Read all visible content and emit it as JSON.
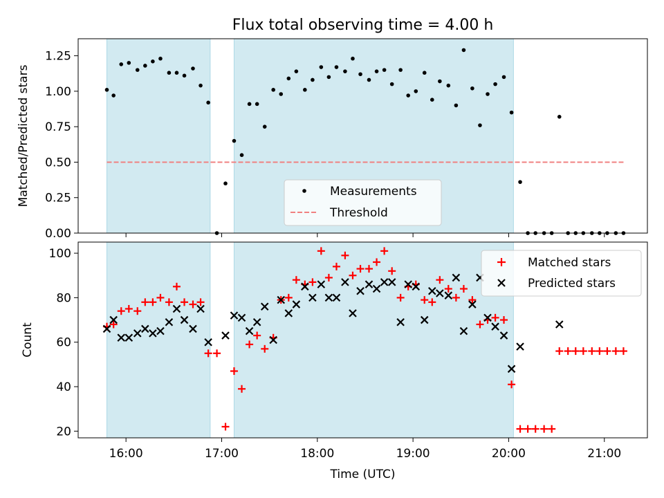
{
  "title": "Flux total observing time = 4.00 h",
  "chart_data": [
    {
      "type": "scatter",
      "ylabel": "Matched/Predicted stars",
      "xlim": [
        15.5,
        21.45
      ],
      "ylim": [
        0,
        1.37
      ],
      "yticks": [
        "0.00",
        "0.25",
        "0.50",
        "0.75",
        "1.00",
        "1.25"
      ],
      "ytick_values": [
        0,
        0.25,
        0.5,
        0.75,
        1.0,
        1.25
      ],
      "grid": false,
      "legend_position": "lower center",
      "legend": {
        "measurements": "Measurements",
        "threshold": "Threshold"
      },
      "threshold": {
        "value": 0.5,
        "x_range": [
          15.8,
          21.2
        ],
        "color": "#f08080"
      },
      "observing_windows": [
        [
          15.8,
          16.88
        ],
        [
          17.13,
          20.05
        ]
      ],
      "window_color": "#add8e6",
      "marker_color": "#000000",
      "x": [
        15.8,
        15.87,
        15.95,
        16.03,
        16.12,
        16.2,
        16.28,
        16.36,
        16.45,
        16.53,
        16.61,
        16.7,
        16.78,
        16.86,
        16.95,
        17.04,
        17.13,
        17.21,
        17.29,
        17.37,
        17.45,
        17.54,
        17.62,
        17.7,
        17.78,
        17.87,
        17.95,
        18.04,
        18.12,
        18.2,
        18.29,
        18.37,
        18.45,
        18.54,
        18.62,
        18.7,
        18.78,
        18.87,
        18.95,
        19.03,
        19.12,
        19.2,
        19.28,
        19.37,
        19.45,
        19.53,
        19.62,
        19.7,
        19.78,
        19.86,
        19.95,
        20.03,
        20.12,
        20.2,
        20.28,
        20.37,
        20.45,
        20.53,
        20.62,
        20.7,
        20.78,
        20.87,
        20.95,
        21.03,
        21.12,
        21.2
      ],
      "y": [
        1.01,
        0.97,
        1.19,
        1.2,
        1.15,
        1.18,
        1.21,
        1.23,
        1.13,
        1.13,
        1.11,
        1.16,
        1.04,
        0.92,
        0.0,
        0.35,
        0.65,
        0.55,
        0.91,
        0.91,
        0.75,
        1.01,
        0.98,
        1.09,
        1.14,
        1.01,
        1.08,
        1.17,
        1.1,
        1.17,
        1.14,
        1.23,
        1.12,
        1.08,
        1.14,
        1.15,
        1.05,
        1.15,
        0.97,
        1.0,
        1.13,
        0.94,
        1.07,
        1.04,
        0.9,
        1.29,
        1.02,
        0.76,
        0.98,
        1.05,
        1.1,
        0.85,
        0.36,
        0.0,
        0.0,
        0.0,
        0.0,
        0.82,
        0.0,
        0.0,
        0.0,
        0.0,
        0.0,
        0.0,
        0.0,
        0.0
      ]
    },
    {
      "type": "scatter",
      "xlabel": "Time (UTC)",
      "ylabel": "Count",
      "xlim": [
        15.5,
        21.45
      ],
      "ylim": [
        17,
        105
      ],
      "xticks": [
        "16:00",
        "17:00",
        "18:00",
        "19:00",
        "20:00",
        "21:00"
      ],
      "xtick_values": [
        16,
        17,
        18,
        19,
        20,
        21
      ],
      "yticks": [
        "20",
        "40",
        "60",
        "80",
        "100"
      ],
      "ytick_values": [
        20,
        40,
        60,
        80,
        100
      ],
      "grid": false,
      "legend_position": "upper right",
      "observing_windows": [
        [
          15.8,
          16.88
        ],
        [
          17.13,
          20.05
        ]
      ],
      "window_color": "#add8e6",
      "series": [
        {
          "name": "Matched stars",
          "marker": "plus",
          "color": "#ff0000",
          "x": [
            15.8,
            15.87,
            15.95,
            16.03,
            16.12,
            16.2,
            16.28,
            16.36,
            16.45,
            16.53,
            16.61,
            16.7,
            16.78,
            16.86,
            16.95,
            17.04,
            17.13,
            17.21,
            17.29,
            17.37,
            17.45,
            17.54,
            17.62,
            17.7,
            17.78,
            17.87,
            17.95,
            18.04,
            18.12,
            18.2,
            18.29,
            18.37,
            18.45,
            18.54,
            18.62,
            18.7,
            18.78,
            18.87,
            18.95,
            19.03,
            19.12,
            19.2,
            19.28,
            19.37,
            19.45,
            19.53,
            19.62,
            19.7,
            19.78,
            19.86,
            19.95,
            20.03,
            20.12,
            20.2,
            20.28,
            20.37,
            20.45,
            20.53,
            20.62,
            20.7,
            20.78,
            20.87,
            20.95,
            21.03,
            21.12,
            21.2
          ],
          "values": [
            67,
            68,
            74,
            75,
            74,
            78,
            78,
            80,
            78,
            85,
            78,
            77,
            78,
            55,
            55,
            22,
            47,
            39,
            59,
            63,
            57,
            62,
            79,
            80,
            88,
            86,
            87,
            101,
            89,
            94,
            99,
            90,
            93,
            93,
            96,
            101,
            92,
            80,
            85,
            86,
            79,
            78,
            88,
            84,
            80,
            84,
            79,
            68,
            70,
            71,
            70,
            41,
            21,
            21,
            21,
            21,
            21,
            56,
            56,
            56,
            56,
            56,
            56,
            56,
            56,
            56
          ]
        },
        {
          "name": "Predicted stars",
          "marker": "x",
          "color": "#000000",
          "x": [
            15.8,
            15.87,
            15.95,
            16.03,
            16.12,
            16.2,
            16.28,
            16.36,
            16.45,
            16.53,
            16.61,
            16.7,
            16.78,
            16.86,
            17.04,
            17.13,
            17.21,
            17.29,
            17.37,
            17.45,
            17.54,
            17.62,
            17.7,
            17.78,
            17.87,
            17.95,
            18.04,
            18.12,
            18.2,
            18.29,
            18.37,
            18.45,
            18.54,
            18.62,
            18.7,
            18.78,
            18.87,
            18.95,
            19.03,
            19.12,
            19.2,
            19.28,
            19.37,
            19.45,
            19.53,
            19.62,
            19.7,
            19.78,
            19.86,
            19.95,
            20.03,
            20.12,
            20.53
          ],
          "values": [
            66,
            70,
            62,
            62,
            64,
            66,
            64,
            65,
            69,
            75,
            70,
            66,
            75,
            60,
            63,
            72,
            71,
            65,
            69,
            76,
            61,
            79,
            73,
            77,
            85,
            80,
            86,
            80,
            80,
            87,
            73,
            83,
            86,
            84,
            87,
            87,
            69,
            86,
            85,
            70,
            83,
            82,
            81,
            89,
            65,
            77,
            89,
            71,
            67,
            63,
            48,
            58,
            68
          ]
        }
      ]
    }
  ]
}
